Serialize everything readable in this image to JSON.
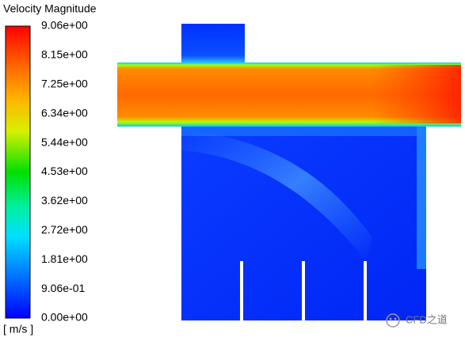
{
  "legend": {
    "title": "Velocity Magnitude",
    "labels": [
      "9.06e+00",
      "8.15e+00",
      "7.25e+00",
      "6.34e+00",
      "5.44e+00",
      "4.53e+00",
      "3.62e+00",
      "2.72e+00",
      "1.81e+00",
      "9.06e-01",
      "0.00e+00"
    ],
    "unit": "[ m/s ]"
  },
  "watermark": "CFD之道"
}
